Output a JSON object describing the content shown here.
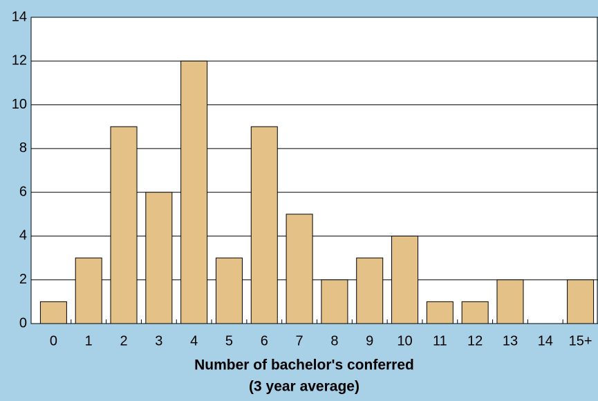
{
  "chart_data": {
    "type": "bar",
    "xlabel": [
      "Number of bachelor's conferred",
      "(3 year average)"
    ],
    "categories": [
      "0",
      "1",
      "2",
      "3",
      "4",
      "5",
      "6",
      "7",
      "8",
      "9",
      "10",
      "11",
      "12",
      "13",
      "14",
      "15+"
    ],
    "values": [
      1,
      3,
      9,
      6,
      12,
      3,
      9,
      5,
      2,
      3,
      4,
      1,
      1,
      2,
      0,
      2
    ],
    "color": "#e3c187",
    "ylim": [
      0,
      14
    ],
    "yticks": [
      0,
      2,
      4,
      6,
      8,
      10,
      12,
      14
    ],
    "grid": true
  }
}
